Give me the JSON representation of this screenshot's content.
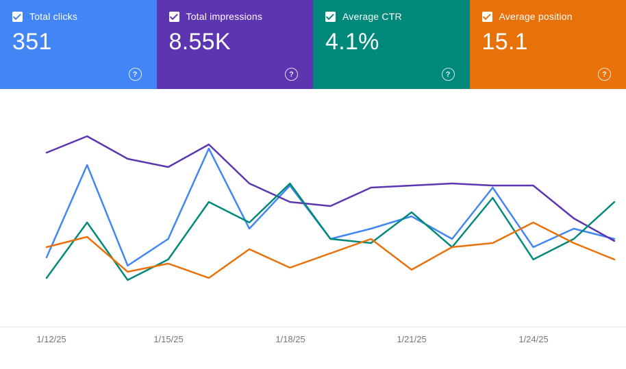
{
  "cards": [
    {
      "label": "Total clicks",
      "value": "351",
      "color": "#4285F4",
      "checked": true
    },
    {
      "label": "Total impressions",
      "value": "8.55K",
      "color": "#5E35B1",
      "checked": true
    },
    {
      "label": "Average CTR",
      "value": "4.1%",
      "color": "#00897B",
      "checked": true
    },
    {
      "label": "Average position",
      "value": "15.1",
      "color": "#E8710A",
      "checked": true
    }
  ],
  "help_icon": "?",
  "chart_data": {
    "type": "line",
    "x": [
      "1/12/25",
      "1/13/25",
      "1/14/25",
      "1/15/25",
      "1/16/25",
      "1/17/25",
      "1/18/25",
      "1/19/25",
      "1/20/25",
      "1/21/25",
      "1/22/25",
      "1/23/25",
      "1/24/25",
      "1/25/25",
      "1/26/25"
    ],
    "x_tick_labels": [
      "1/12/25",
      "1/15/25",
      "1/18/25",
      "1/21/25",
      "1/24/25"
    ],
    "series": [
      {
        "name": "Total clicks",
        "color": "#4285F4",
        "values": [
          28,
          73,
          24,
          37,
          81,
          42,
          63,
          37,
          42,
          48,
          37,
          62,
          33,
          42,
          37
        ]
      },
      {
        "name": "Total impressions",
        "color": "#5E35B1",
        "values": [
          79,
          87,
          76,
          72,
          83,
          64,
          55,
          53,
          62,
          63,
          64,
          63,
          63,
          47,
          36
        ]
      },
      {
        "name": "Average CTR",
        "color": "#00897B",
        "values": [
          18,
          45,
          17,
          27,
          55,
          45,
          64,
          37,
          35,
          50,
          33,
          57,
          27,
          37,
          55
        ]
      },
      {
        "name": "Average position",
        "color": "#E8710A",
        "values": [
          33,
          38,
          21,
          25,
          18,
          32,
          23,
          30,
          37,
          22,
          33,
          35,
          45,
          35,
          27
        ]
      }
    ],
    "title": "",
    "xlabel": "",
    "ylabel": "",
    "ylim": [
      0,
      100
    ],
    "y_units": "relative height 0-100 (no y-axis labels shown in chart)",
    "grid": false,
    "legend": "none (legend carried by colored metric cards above)"
  }
}
